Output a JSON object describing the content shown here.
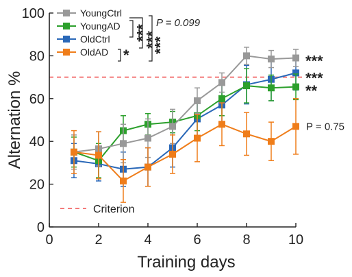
{
  "chart_data": {
    "type": "line",
    "xlabel": "Training days",
    "ylabel": "Alternation %",
    "xlim": [
      0,
      10
    ],
    "ylim": [
      0,
      100
    ],
    "xticks": [
      0,
      2,
      4,
      6,
      8,
      10
    ],
    "yticks": [
      0,
      20,
      40,
      60,
      80,
      100
    ],
    "legend_position": "top-left",
    "x": [
      1,
      2,
      3,
      4,
      5,
      6,
      7,
      8,
      9,
      10
    ],
    "series": [
      {
        "name": "YoungCtrl",
        "color": "#999999",
        "values": [
          35,
          36.5,
          39,
          41.5,
          47,
          59,
          67.5,
          80,
          78.5,
          79
        ],
        "errors": [
          8,
          8,
          9,
          9,
          8,
          6,
          4.5,
          4,
          4,
          4
        ]
      },
      {
        "name": "YoungAD",
        "color": "#2ca02c",
        "values": [
          35,
          31,
          45,
          48,
          49,
          52,
          60,
          66,
          65,
          65.5
        ],
        "errors": [
          7,
          8,
          7,
          5,
          5,
          7,
          8,
          8,
          6,
          6
        ]
      },
      {
        "name": "OldCtrl",
        "color": "#2a68b8",
        "values": [
          31,
          29.5,
          27,
          28,
          37,
          50.5,
          57,
          66.5,
          69,
          72
        ],
        "errors": [
          8,
          8,
          8,
          9,
          9,
          9,
          10,
          9,
          10,
          8
        ]
      },
      {
        "name": "OldAD",
        "color": "#ef7d1a",
        "values": [
          35,
          33.5,
          21.5,
          28,
          34,
          41.5,
          48,
          43.5,
          40,
          47
        ],
        "errors": [
          10,
          11,
          10,
          9,
          9,
          11,
          10,
          10,
          9,
          13
        ]
      }
    ],
    "reference_line": {
      "name": "Criterion",
      "y": 70,
      "color": "#f47b7b"
    },
    "annotations": {
      "bracket_labels": [
        "***",
        "***",
        "*",
        "***"
      ],
      "bracket_p": "P = 0.099",
      "right_labels": [
        {
          "text": "***",
          "y": 79
        },
        {
          "text": "***",
          "y": 71
        },
        {
          "text": "**",
          "y": 65
        }
      ],
      "right_p": {
        "text": "P = 0.75",
        "y": 47
      }
    }
  }
}
